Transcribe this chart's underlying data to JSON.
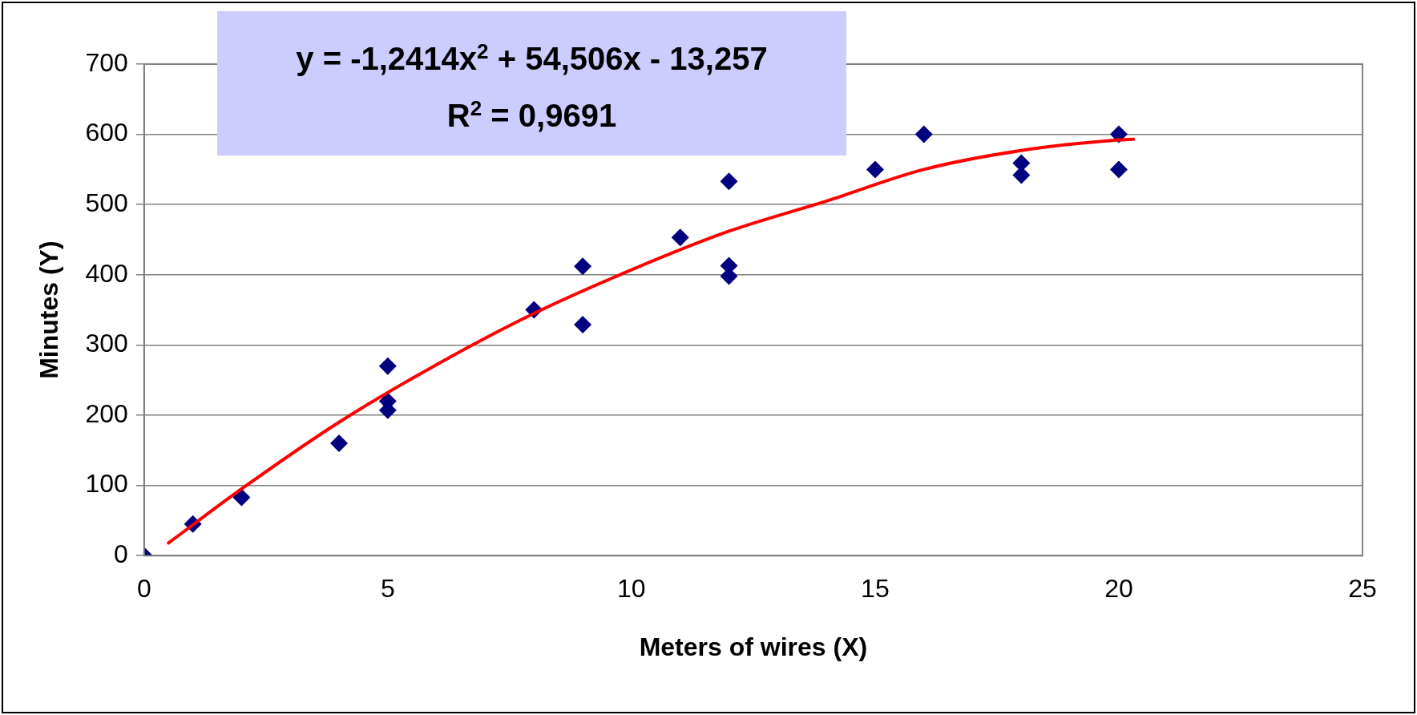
{
  "chart_data": {
    "type": "scatter",
    "xlabel": "Meters of wires (X)",
    "ylabel": "Minutes (Y)",
    "annotations": [
      "y = -1,2414x$^{2}$ + 54,506x - 13,257",
      "R$^{2}$ = 0,9691"
    ],
    "xlim": [
      0,
      25
    ],
    "xticks": [
      0,
      5,
      10,
      15,
      20,
      25
    ],
    "ylim": [
      0,
      700
    ],
    "yticks": [
      0,
      100,
      200,
      300,
      400,
      500,
      600,
      700
    ],
    "grid": "y",
    "legend": false,
    "marker": "diamond",
    "series": [
      {
        "color": "#000080",
        "x": [
          0,
          1,
          2,
          4,
          5,
          5,
          5,
          8,
          9,
          9,
          11,
          12,
          12,
          12,
          15,
          16,
          18,
          18,
          20,
          20
        ],
        "values": [
          0,
          45,
          83,
          160,
          270,
          220,
          207,
          350,
          412,
          329,
          453,
          533,
          413,
          398,
          550,
          600,
          559,
          542,
          600,
          550
        ]
      },
      {
        "type": "line",
        "color": "#ff0000",
        "marker": "none",
        "line_style": "solid",
        "x": [
          0.5,
          2,
          4,
          6,
          8,
          10,
          12,
          14,
          16,
          18,
          20,
          20.3
        ],
        "values": [
          18,
          95,
          190,
          272,
          345,
          407,
          462,
          505,
          550,
          577,
          592,
          593
        ]
      }
    ]
  }
}
